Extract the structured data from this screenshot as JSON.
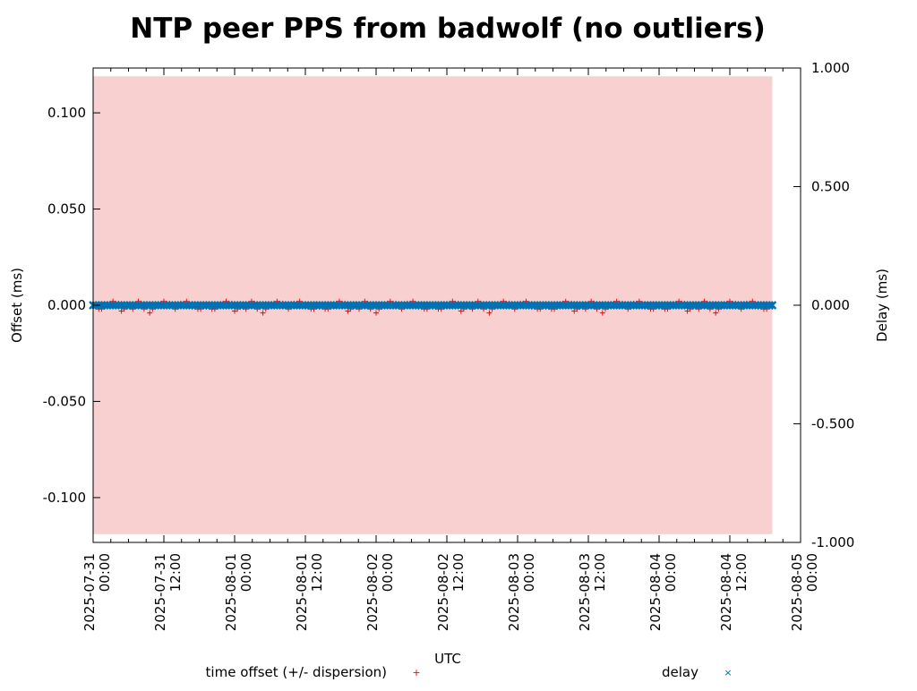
{
  "chart_data": {
    "type": "scatter",
    "title": "NTP peer PPS from badwolf (no outliers)",
    "xlabel": "UTC",
    "ylabel": "Offset (ms)",
    "y2label": "Delay (ms)",
    "ylim": [
      -0.1233,
      0.1233
    ],
    "y2lim": [
      -1.0,
      1.0
    ],
    "xlim_hours": [
      0,
      120
    ],
    "x_start": "2025-07-31 00:00",
    "yticks": [
      0.1,
      0.05,
      0.0,
      -0.05,
      -0.1
    ],
    "ytick_labels": [
      "0.100",
      "0.050",
      "0.000",
      "-0.050",
      "-0.100"
    ],
    "y2ticks": [
      1.0,
      0.5,
      0.0,
      -0.5,
      -1.0
    ],
    "y2tick_labels": [
      "1.000",
      "0.500",
      "0.000",
      "-0.500",
      "-1.000"
    ],
    "xticks_hours": [
      0,
      12,
      24,
      36,
      48,
      60,
      72,
      84,
      96,
      108,
      120
    ],
    "xtick_labels": [
      [
        "2025-07-31",
        "00:00"
      ],
      [
        "2025-07-31",
        "12:00"
      ],
      [
        "2025-08-01",
        "00:00"
      ],
      [
        "2025-08-01",
        "12:00"
      ],
      [
        "2025-08-02",
        "00:00"
      ],
      [
        "2025-08-02",
        "12:00"
      ],
      [
        "2025-08-03",
        "00:00"
      ],
      [
        "2025-08-03",
        "12:00"
      ],
      [
        "2025-08-04",
        "00:00"
      ],
      [
        "2025-08-04",
        "12:00"
      ],
      [
        "2025-08-05",
        "00:00"
      ]
    ],
    "data_end_hour": 115.2,
    "dispersion_ms": 0.119,
    "series": [
      {
        "name": "time offset (+/- dispersion)",
        "color": "#ff0000",
        "marker": "+",
        "axis": "y",
        "values_ms": [
          0.001,
          -0.001,
          0.002,
          -0.002,
          0.001,
          0.0,
          -0.001,
          0.002,
          -0.001,
          0.001,
          0.003,
          -0.002,
          0.001,
          -0.001,
          0.002,
          0.0,
          -0.002,
          0.001,
          0.002,
          -0.001,
          0.004,
          -0.002,
          0.001,
          0.0,
          -0.001,
          0.002,
          -0.001,
          0.001,
          0.0,
          -0.002,
          0.001,
          0.001,
          -0.001,
          0.002,
          0.0,
          -0.001,
          0.001,
          -0.002,
          0.002,
          0.0
        ]
      },
      {
        "name": "delay",
        "color": "#0072b2",
        "marker": "x",
        "axis": "y2",
        "value_ms": 0.0
      }
    ],
    "band_color": "#f8d0d0",
    "legend": "bottom"
  }
}
